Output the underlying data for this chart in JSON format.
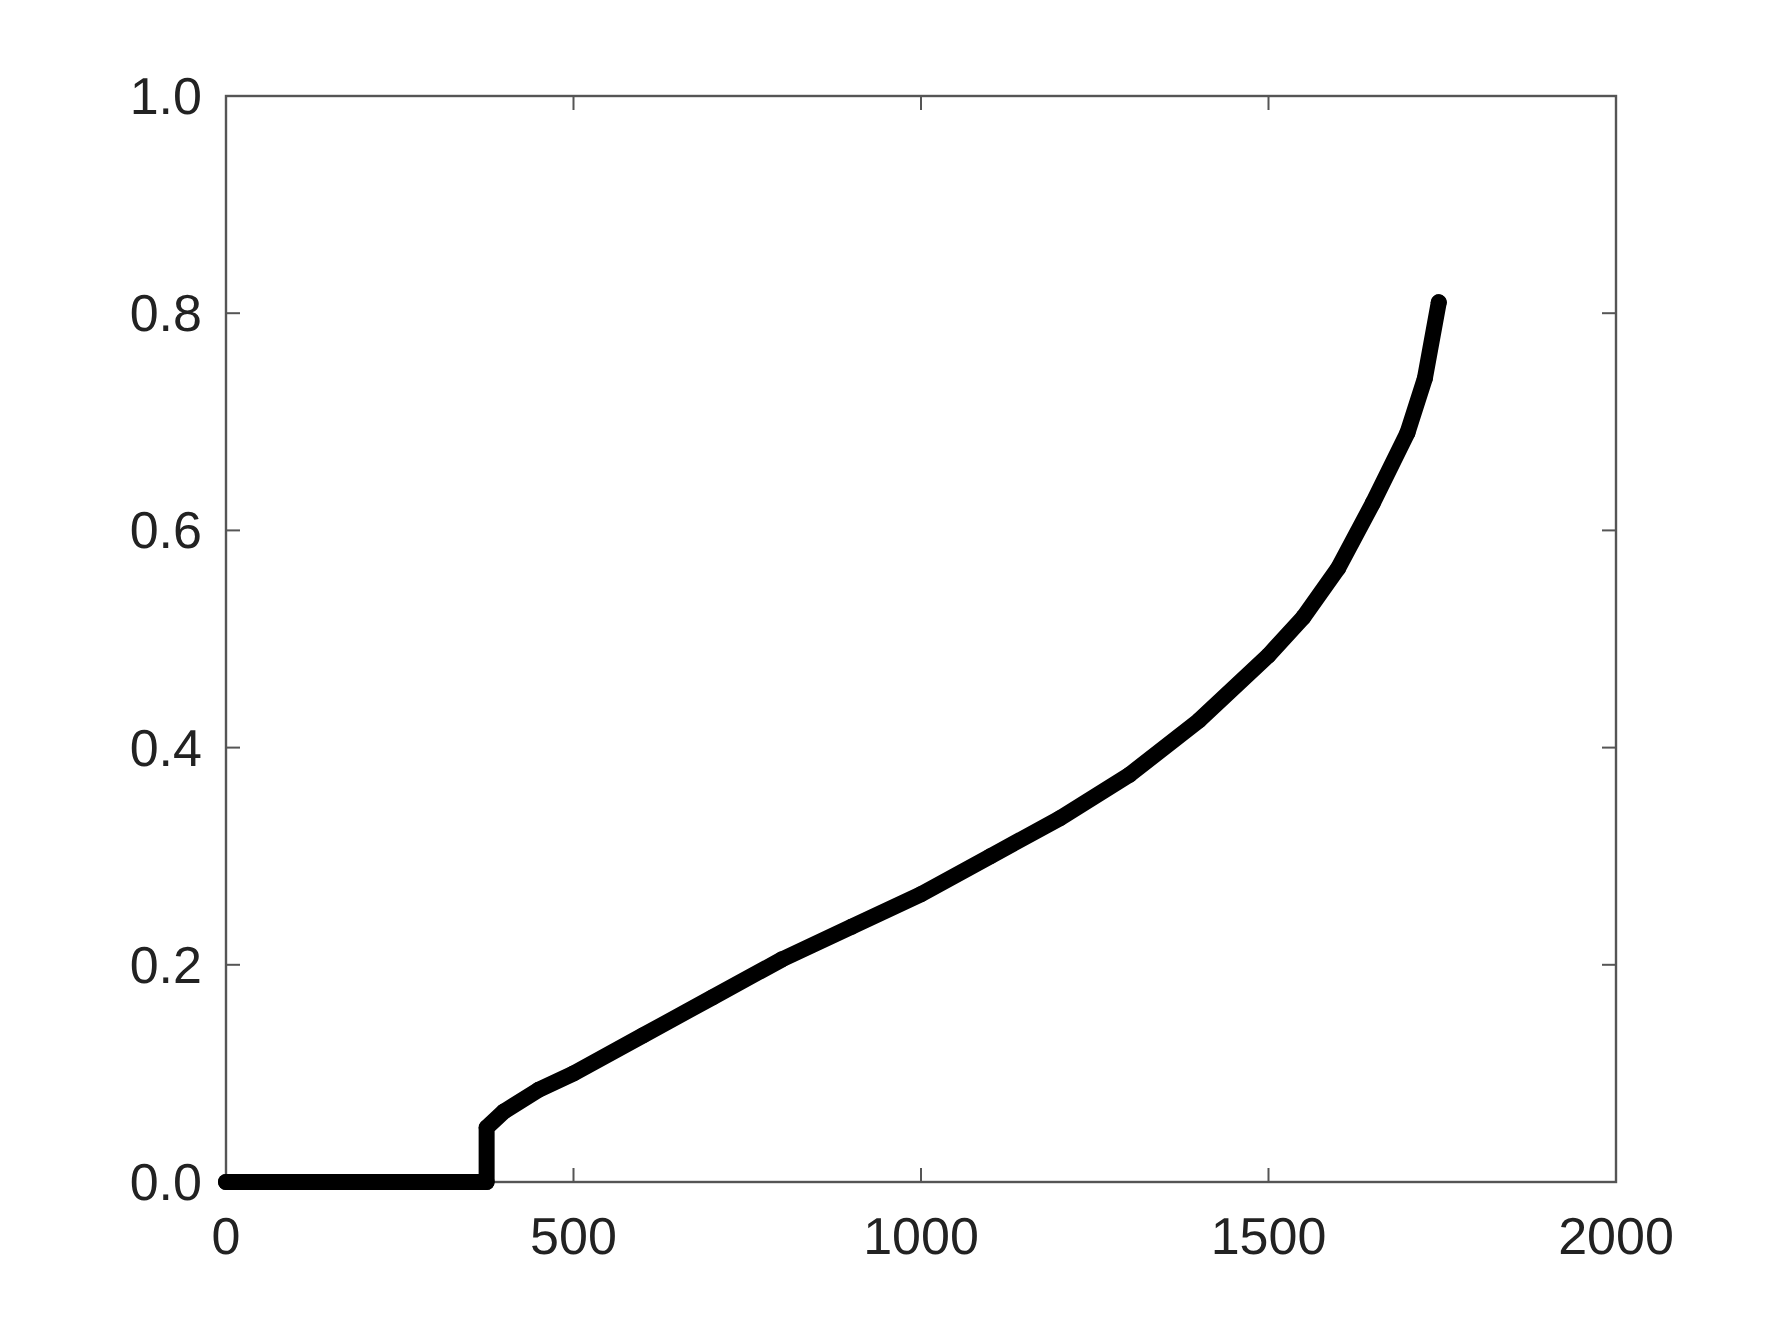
{
  "chart_data": {
    "type": "line",
    "marker": "circle",
    "x": [
      0,
      100,
      200,
      300,
      375,
      375,
      400,
      450,
      500,
      600,
      700,
      800,
      900,
      1000,
      1100,
      1200,
      1300,
      1400,
      1500,
      1550,
      1600,
      1650,
      1700,
      1725,
      1745
    ],
    "series": [
      {
        "color": "#000000",
        "values": [
          0,
          0,
          0,
          0,
          0,
          0.05,
          0.065,
          0.085,
          0.1,
          0.135,
          0.17,
          0.205,
          0.235,
          0.265,
          0.3,
          0.335,
          0.375,
          0.425,
          0.485,
          0.52,
          0.565,
          0.625,
          0.69,
          0.74,
          0.81
        ]
      }
    ],
    "xlim": [
      0,
      2000
    ],
    "xticks": [
      0,
      500,
      1000,
      1500,
      2000
    ],
    "ylim": [
      0,
      1
    ],
    "yticks": [
      {
        "value": 0,
        "label": "0.0"
      },
      {
        "value": 0.2,
        "label": "0.2"
      },
      {
        "value": 0.4,
        "label": "0.4"
      },
      {
        "value": 0.6,
        "label": "0.6"
      },
      {
        "value": 0.8,
        "label": "0.8"
      },
      {
        "value": 1,
        "label": "1.0"
      }
    ]
  }
}
